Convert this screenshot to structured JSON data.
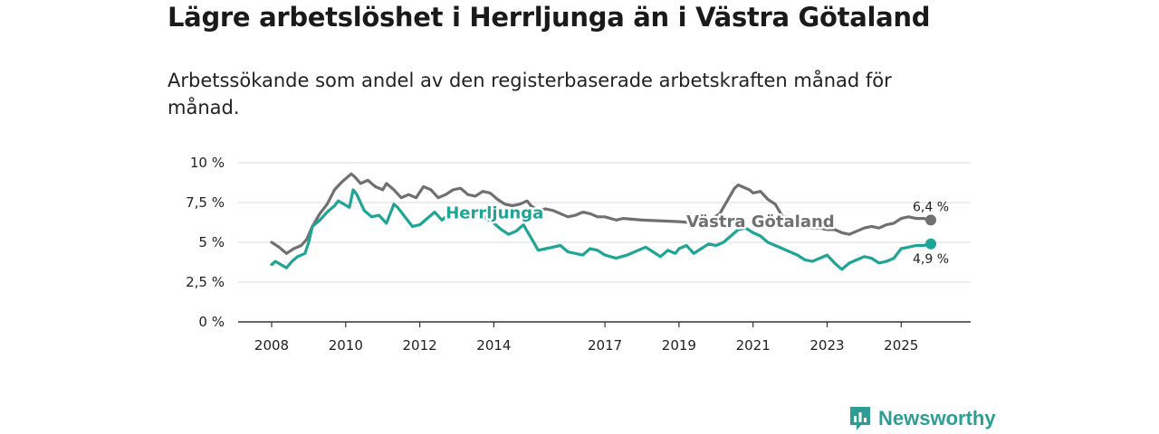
{
  "title": "Lägre arbetslöshet i Herrljunga än i Västra Götaland",
  "subtitle": "Arbetssökande som andel av den registerbaserade arbetskraften månad för månad.",
  "brand": {
    "name": "Newsworthy",
    "icon": "newsworthy-logo-icon",
    "color": "#2e9e95"
  },
  "chart_data": {
    "type": "line",
    "xlim": [
      2008.0,
      2026.6
    ],
    "ylim": [
      0,
      10
    ],
    "y_ticks": [
      0,
      2.5,
      5,
      7.5,
      10
    ],
    "y_tick_labels": [
      "0 %",
      "2,5 %",
      "5 %",
      "7,5 %",
      "10 %"
    ],
    "x_ticks": [
      2008,
      2010,
      2012,
      2014,
      2017,
      2019,
      2021,
      2023,
      2025
    ],
    "x_tick_labels": [
      "2008",
      "2010",
      "2012",
      "2014",
      "2017",
      "2019",
      "2021",
      "2023",
      "2025"
    ],
    "grid": true,
    "series": [
      {
        "name": "Västra Götaland",
        "color": "#707070",
        "end_label": "6,4 %",
        "points": [
          [
            2008.0,
            5.0
          ],
          [
            2008.2,
            4.7
          ],
          [
            2008.4,
            4.3
          ],
          [
            2008.6,
            4.6
          ],
          [
            2008.8,
            4.8
          ],
          [
            2008.95,
            5.2
          ],
          [
            2009.1,
            6.0
          ],
          [
            2009.3,
            6.8
          ],
          [
            2009.5,
            7.4
          ],
          [
            2009.7,
            8.3
          ],
          [
            2009.9,
            8.8
          ],
          [
            2010.0,
            9.0
          ],
          [
            2010.15,
            9.3
          ],
          [
            2010.25,
            9.1
          ],
          [
            2010.4,
            8.7
          ],
          [
            2010.6,
            8.9
          ],
          [
            2010.8,
            8.5
          ],
          [
            2011.0,
            8.3
          ],
          [
            2011.1,
            8.7
          ],
          [
            2011.3,
            8.3
          ],
          [
            2011.5,
            7.8
          ],
          [
            2011.7,
            8.0
          ],
          [
            2011.9,
            7.8
          ],
          [
            2012.1,
            8.5
          ],
          [
            2012.3,
            8.3
          ],
          [
            2012.5,
            7.8
          ],
          [
            2012.7,
            8.0
          ],
          [
            2012.9,
            8.3
          ],
          [
            2013.1,
            8.4
          ],
          [
            2013.3,
            8.0
          ],
          [
            2013.5,
            7.9
          ],
          [
            2013.7,
            8.2
          ],
          [
            2013.9,
            8.1
          ],
          [
            2014.1,
            7.7
          ],
          [
            2014.3,
            7.4
          ],
          [
            2014.5,
            7.3
          ],
          [
            2014.7,
            7.4
          ],
          [
            2014.9,
            7.6
          ],
          [
            2015.0,
            7.3
          ],
          [
            2015.2,
            7.0
          ],
          [
            2015.4,
            7.1
          ],
          [
            2015.6,
            7.0
          ],
          [
            2015.8,
            6.8
          ],
          [
            2016.0,
            6.6
          ],
          [
            2016.2,
            6.7
          ],
          [
            2016.4,
            6.9
          ],
          [
            2016.6,
            6.8
          ],
          [
            2016.8,
            6.6
          ],
          [
            2017.0,
            6.6
          ],
          [
            2017.3,
            6.4
          ],
          [
            2017.5,
            6.5
          ],
          [
            2018.0,
            6.4
          ],
          [
            2019.0,
            6.3
          ],
          [
            2019.5,
            6.2
          ],
          [
            2019.9,
            6.5
          ],
          [
            2020.1,
            6.8
          ],
          [
            2020.3,
            7.6
          ],
          [
            2020.5,
            8.4
          ],
          [
            2020.6,
            8.6
          ],
          [
            2020.7,
            8.5
          ],
          [
            2020.9,
            8.3
          ],
          [
            2021.0,
            8.1
          ],
          [
            2021.2,
            8.2
          ],
          [
            2021.4,
            7.7
          ],
          [
            2021.6,
            7.4
          ],
          [
            2021.8,
            6.6
          ],
          [
            2022.0,
            6.5
          ],
          [
            2022.2,
            6.3
          ],
          [
            2022.4,
            6.0
          ],
          [
            2022.6,
            5.9
          ],
          [
            2022.8,
            5.9
          ],
          [
            2023.0,
            5.8
          ],
          [
            2023.2,
            5.8
          ],
          [
            2023.4,
            5.6
          ],
          [
            2023.6,
            5.5
          ],
          [
            2023.8,
            5.7
          ],
          [
            2024.0,
            5.9
          ],
          [
            2024.2,
            6.0
          ],
          [
            2024.4,
            5.9
          ],
          [
            2024.6,
            6.1
          ],
          [
            2024.8,
            6.2
          ],
          [
            2025.0,
            6.5
          ],
          [
            2025.2,
            6.6
          ],
          [
            2025.4,
            6.5
          ],
          [
            2025.6,
            6.5
          ],
          [
            2025.8,
            6.4
          ]
        ]
      },
      {
        "name": "Herrljunga",
        "color": "#1fa596",
        "end_label": "4,9 %",
        "points": [
          [
            2008.0,
            3.6
          ],
          [
            2008.1,
            3.8
          ],
          [
            2008.25,
            3.6
          ],
          [
            2008.4,
            3.4
          ],
          [
            2008.55,
            3.8
          ],
          [
            2008.7,
            4.1
          ],
          [
            2008.9,
            4.3
          ],
          [
            2009.0,
            5.0
          ],
          [
            2009.1,
            6.0
          ],
          [
            2009.3,
            6.4
          ],
          [
            2009.5,
            6.9
          ],
          [
            2009.7,
            7.3
          ],
          [
            2009.8,
            7.6
          ],
          [
            2009.95,
            7.4
          ],
          [
            2010.1,
            7.2
          ],
          [
            2010.2,
            8.3
          ],
          [
            2010.3,
            8.0
          ],
          [
            2010.5,
            7.0
          ],
          [
            2010.7,
            6.6
          ],
          [
            2010.9,
            6.7
          ],
          [
            2011.1,
            6.2
          ],
          [
            2011.3,
            7.4
          ],
          [
            2011.4,
            7.2
          ],
          [
            2011.6,
            6.6
          ],
          [
            2011.8,
            6.0
          ],
          [
            2012.0,
            6.1
          ],
          [
            2012.2,
            6.5
          ],
          [
            2012.4,
            6.9
          ],
          [
            2012.6,
            6.4
          ],
          [
            2012.8,
            6.8
          ],
          [
            2013.0,
            7.0
          ],
          [
            2013.2,
            7.1
          ],
          [
            2013.4,
            6.6
          ],
          [
            2013.6,
            6.9
          ],
          [
            2013.8,
            6.5
          ],
          [
            2014.0,
            6.2
          ],
          [
            2014.2,
            5.8
          ],
          [
            2014.4,
            5.5
          ],
          [
            2014.6,
            5.7
          ],
          [
            2014.8,
            6.1
          ],
          [
            2015.0,
            5.3
          ],
          [
            2015.2,
            4.5
          ],
          [
            2015.4,
            4.6
          ],
          [
            2015.6,
            4.7
          ],
          [
            2015.8,
            4.8
          ],
          [
            2016.0,
            4.4
          ],
          [
            2016.2,
            4.3
          ],
          [
            2016.4,
            4.2
          ],
          [
            2016.6,
            4.6
          ],
          [
            2016.8,
            4.5
          ],
          [
            2017.0,
            4.2
          ],
          [
            2017.3,
            4.0
          ],
          [
            2017.6,
            4.2
          ],
          [
            2017.9,
            4.5
          ],
          [
            2018.1,
            4.7
          ],
          [
            2018.3,
            4.4
          ],
          [
            2018.5,
            4.1
          ],
          [
            2018.7,
            4.5
          ],
          [
            2018.9,
            4.3
          ],
          [
            2019.0,
            4.6
          ],
          [
            2019.2,
            4.8
          ],
          [
            2019.4,
            4.3
          ],
          [
            2019.6,
            4.6
          ],
          [
            2019.8,
            4.9
          ],
          [
            2020.0,
            4.8
          ],
          [
            2020.2,
            5.0
          ],
          [
            2020.4,
            5.4
          ],
          [
            2020.6,
            5.8
          ],
          [
            2020.8,
            5.9
          ],
          [
            2021.0,
            5.6
          ],
          [
            2021.2,
            5.4
          ],
          [
            2021.4,
            5.0
          ],
          [
            2021.6,
            4.8
          ],
          [
            2021.8,
            4.6
          ],
          [
            2022.0,
            4.4
          ],
          [
            2022.2,
            4.2
          ],
          [
            2022.4,
            3.9
          ],
          [
            2022.6,
            3.8
          ],
          [
            2022.8,
            4.0
          ],
          [
            2023.0,
            4.2
          ],
          [
            2023.2,
            3.7
          ],
          [
            2023.4,
            3.3
          ],
          [
            2023.6,
            3.7
          ],
          [
            2023.8,
            3.9
          ],
          [
            2024.0,
            4.1
          ],
          [
            2024.2,
            4.0
          ],
          [
            2024.4,
            3.7
          ],
          [
            2024.6,
            3.8
          ],
          [
            2024.8,
            4.0
          ],
          [
            2025.0,
            4.6
          ],
          [
            2025.2,
            4.7
          ],
          [
            2025.4,
            4.8
          ],
          [
            2025.6,
            4.8
          ],
          [
            2025.8,
            4.9
          ]
        ]
      }
    ]
  }
}
